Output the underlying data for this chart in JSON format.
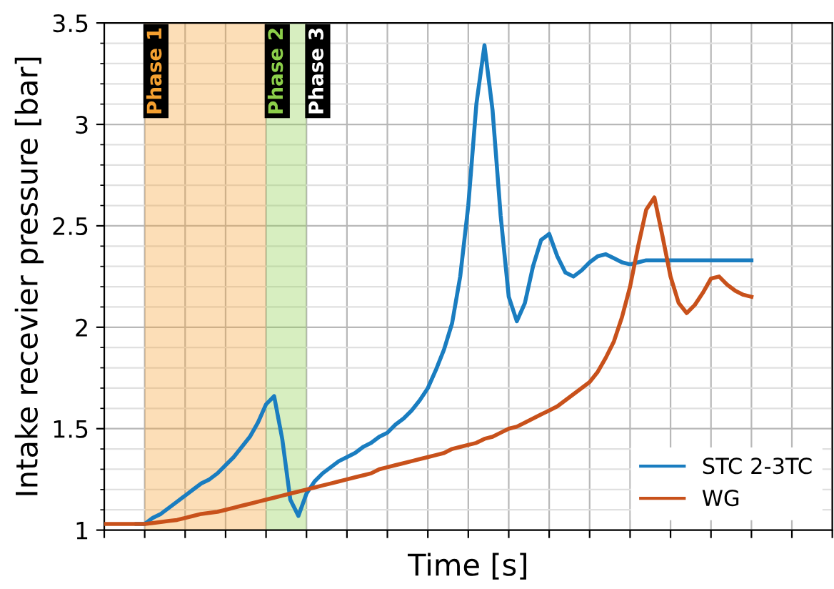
{
  "chart_data": {
    "type": "line",
    "xlabel": "Time [s]",
    "ylabel": "Intake recevier pressure [bar]",
    "categories": [
      null,
      null,
      null,
      null,
      null,
      null,
      null,
      null,
      null,
      null,
      null,
      null,
      null,
      null,
      null,
      null,
      null,
      null,
      null,
      null,
      null,
      null,
      null,
      null,
      null,
      null,
      null,
      null,
      null,
      null,
      null,
      null,
      null,
      null,
      null,
      null,
      null,
      null,
      null,
      null,
      null,
      null,
      null,
      null,
      null,
      null,
      null,
      null,
      null,
      null,
      null,
      null,
      null,
      null,
      null,
      null,
      null,
      null,
      null,
      null,
      null,
      null,
      null,
      null,
      null,
      null,
      null,
      null,
      null,
      null,
      null,
      null,
      null,
      null,
      null,
      null,
      null,
      null,
      null,
      null,
      null,
      null,
      null,
      null,
      null,
      null,
      null,
      null,
      null,
      null,
      null
    ],
    "ylim": [
      1,
      3.5
    ],
    "yticks": [
      1,
      {
        "value": 1.1,
        "label": null
      },
      {
        "value": 1.2,
        "label": null
      },
      {
        "value": 1.3,
        "label": null
      },
      {
        "value": 1.4,
        "label": null
      },
      1.5,
      {
        "value": 1.6,
        "label": null
      },
      {
        "value": 1.7,
        "label": null
      },
      {
        "value": 1.8,
        "label": null
      },
      {
        "value": 1.9,
        "label": null
      },
      2,
      {
        "value": 2.1,
        "label": null
      },
      {
        "value": 2.2,
        "label": null
      },
      {
        "value": 2.3,
        "label": null
      },
      {
        "value": 2.4,
        "label": null
      },
      2.5,
      {
        "value": 2.6,
        "label": null
      },
      {
        "value": 2.7,
        "label": null
      },
      {
        "value": 2.8,
        "label": null
      },
      {
        "value": 2.9,
        "label": null
      },
      3,
      {
        "value": 3.1,
        "label": null
      },
      {
        "value": 3.2,
        "label": null
      },
      {
        "value": 3.3,
        "label": null
      },
      {
        "value": 3.4,
        "label": null
      },
      3.5
    ],
    "grid": true,
    "legend": "bottom right",
    "line_style": "solid",
    "annotations": [
      "Phase 1",
      "Phase 2",
      "Phase 3"
    ],
    "series": [
      {
        "name": "STC 2-3TC",
        "color": "#1a7dc0",
        "values": [
          null,
          null,
          null,
          null,
          1.03,
          1.03,
          1.06,
          1.08,
          1.11,
          1.14,
          1.17,
          1.2,
          1.23,
          1.25,
          1.28,
          1.32,
          1.36,
          1.41,
          1.46,
          1.53,
          1.62,
          1.66,
          1.45,
          1.15,
          1.07,
          1.18,
          1.24,
          1.28,
          1.31,
          1.34,
          1.36,
          1.38,
          1.41,
          1.43,
          1.46,
          1.48,
          1.52,
          1.55,
          1.59,
          1.64,
          1.7,
          1.79,
          1.89,
          2.02,
          2.25,
          2.6,
          3.1,
          3.39,
          3.07,
          2.55,
          2.15,
          2.03,
          2.12,
          2.3,
          2.43,
          2.46,
          2.35,
          2.27,
          2.25,
          2.28,
          2.32,
          2.35,
          2.36,
          2.34,
          2.32,
          2.31,
          2.32,
          2.33,
          2.33,
          2.33,
          2.33,
          2.33,
          2.33,
          2.33,
          2.33,
          2.33,
          2.33,
          2.33,
          2.33,
          2.33,
          2.33,
          null,
          null,
          null,
          null,
          null,
          null,
          null,
          null,
          null,
          null
        ]
      },
      {
        "name": "WG",
        "color": "#c8511b",
        "values": [
          1.03,
          1.03,
          1.03,
          1.03,
          1.03,
          1.03,
          1.035,
          1.04,
          1.045,
          1.05,
          1.06,
          1.07,
          1.08,
          1.085,
          1.09,
          1.1,
          1.11,
          1.12,
          1.13,
          1.14,
          1.15,
          1.16,
          1.17,
          1.18,
          1.19,
          1.2,
          1.21,
          1.22,
          1.23,
          1.24,
          1.25,
          1.26,
          1.27,
          1.28,
          1.3,
          1.31,
          1.32,
          1.33,
          1.34,
          1.35,
          1.36,
          1.37,
          1.38,
          1.4,
          1.41,
          1.42,
          1.43,
          1.45,
          1.46,
          1.48,
          1.5,
          1.51,
          1.53,
          1.55,
          1.57,
          1.59,
          1.61,
          1.64,
          1.67,
          1.7,
          1.73,
          1.78,
          1.85,
          1.93,
          2.05,
          2.2,
          2.4,
          2.58,
          2.64,
          2.45,
          2.25,
          2.12,
          2.07,
          2.11,
          2.17,
          2.24,
          2.25,
          2.21,
          2.18,
          2.16,
          2.15,
          null,
          null,
          null,
          null,
          null,
          null,
          null,
          null,
          null,
          null
        ]
      }
    ]
  }
}
